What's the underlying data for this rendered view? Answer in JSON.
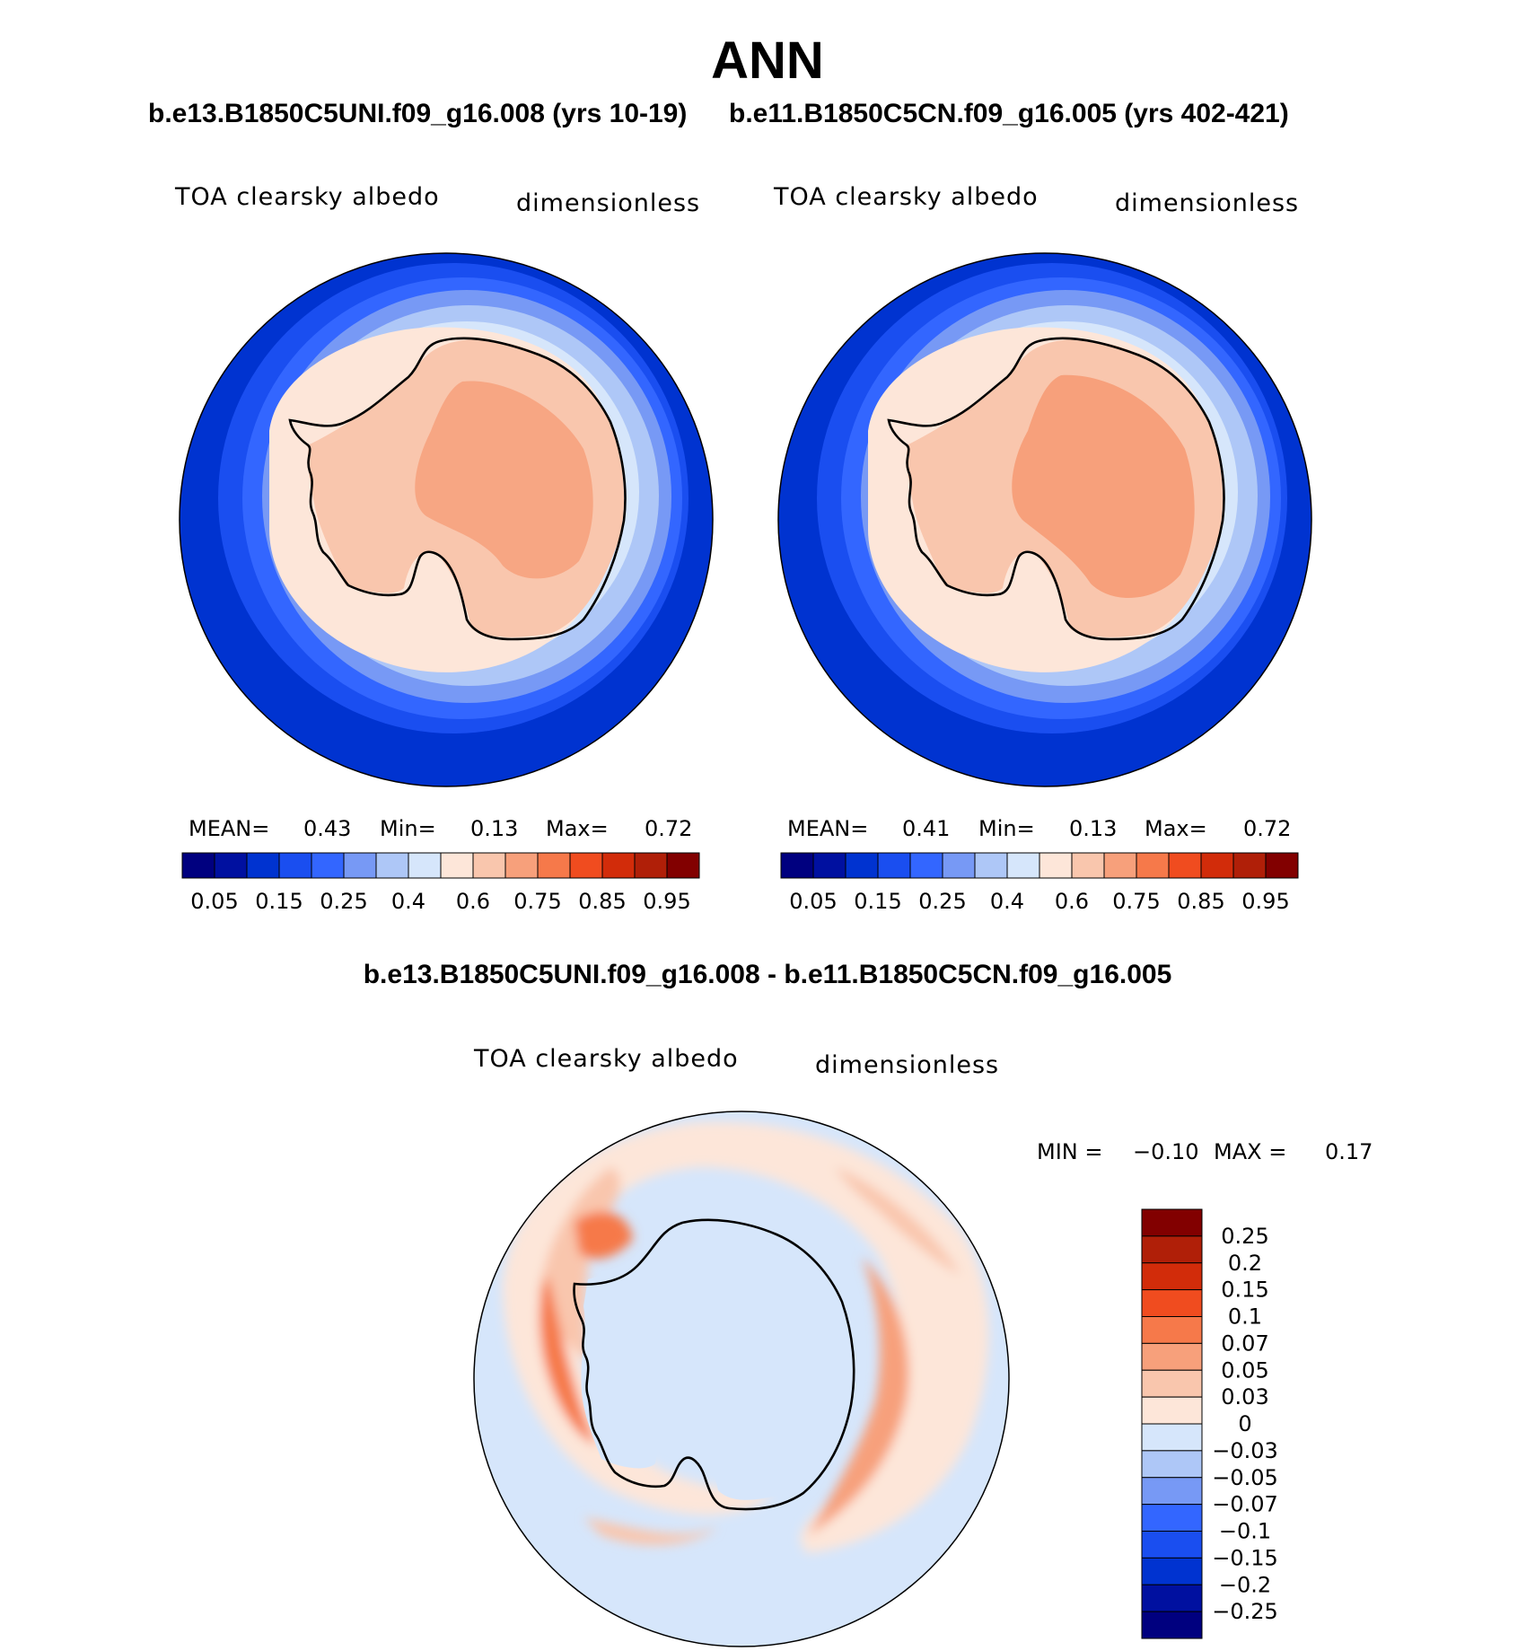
{
  "title": "ANN",
  "panels": [
    {
      "case_title": "b.e13.B1850C5UNI.f09_g16.008 (yrs 10-19)",
      "variable_label": "TOA clearsky albedo",
      "units_label": "dimensionless",
      "stats": {
        "mean_label": "MEAN=",
        "mean": "0.43",
        "min_label": "Min=",
        "min": "0.13",
        "max_label": "Max=",
        "max": "0.72"
      }
    },
    {
      "case_title": "b.e11.B1850C5CN.f09_g16.005 (yrs 402-421)",
      "variable_label": "TOA clearsky albedo",
      "units_label": "dimensionless",
      "stats": {
        "mean_label": "MEAN=",
        "mean": "0.41",
        "min_label": "Min=",
        "min": "0.13",
        "max_label": "Max=",
        "max": "0.72"
      }
    }
  ],
  "diff_panel": {
    "case_title": "b.e13.B1850C5UNI.f09_g16.008 - b.e11.B1850C5CN.f09_g16.005",
    "variable_label": "TOA clearsky albedo",
    "units_label": "dimensionless",
    "stats": {
      "min_label": "MIN =",
      "min": "−0.10",
      "max_label": "MAX =",
      "max": "0.17"
    }
  },
  "chart_data": [
    {
      "type": "heatmap",
      "projection": "south-polar-stereographic",
      "title": "b.e13.B1850C5UNI.f09_g16.008 (yrs 10-19)",
      "field": "TOA clearsky albedo",
      "units": "dimensionless",
      "mean": 0.43,
      "min": 0.13,
      "max": 0.72,
      "colorbar_levels": [
        0.05,
        0.1,
        0.15,
        0.2,
        0.25,
        0.3,
        0.4,
        0.5,
        0.6,
        0.7,
        0.75,
        0.8,
        0.85,
        0.9,
        0.95
      ],
      "colorbar_tick_labels": [
        "0.05",
        "0.15",
        "0.25",
        "0.4",
        "0.6",
        "0.75",
        "0.85",
        "0.95"
      ],
      "colors": [
        "#00007f",
        "#0010a0",
        "#0033d0",
        "#1a4ef0",
        "#3366ff",
        "#7799f5",
        "#aec7f7",
        "#d6e6fb",
        "#fde6d9",
        "#f9c6ad",
        "#f7a07b",
        "#f6794a",
        "#f04c1f",
        "#d22c0a",
        "#b01f08",
        "#820000"
      ]
    },
    {
      "type": "heatmap",
      "projection": "south-polar-stereographic",
      "title": "b.e11.B1850C5CN.f09_g16.005 (yrs 402-421)",
      "field": "TOA clearsky albedo",
      "units": "dimensionless",
      "mean": 0.41,
      "min": 0.13,
      "max": 0.72,
      "colorbar_levels": [
        0.05,
        0.1,
        0.15,
        0.2,
        0.25,
        0.3,
        0.4,
        0.5,
        0.6,
        0.7,
        0.75,
        0.8,
        0.85,
        0.9,
        0.95
      ],
      "colorbar_tick_labels": [
        "0.05",
        "0.15",
        "0.25",
        "0.4",
        "0.6",
        "0.75",
        "0.85",
        "0.95"
      ],
      "colors": [
        "#00007f",
        "#0010a0",
        "#0033d0",
        "#1a4ef0",
        "#3366ff",
        "#7799f5",
        "#aec7f7",
        "#d6e6fb",
        "#fde6d9",
        "#f9c6ad",
        "#f7a07b",
        "#f6794a",
        "#f04c1f",
        "#d22c0a",
        "#b01f08",
        "#820000"
      ]
    },
    {
      "type": "heatmap",
      "projection": "south-polar-stereographic",
      "title": "b.e13.B1850C5UNI.f09_g16.008 - b.e11.B1850C5CN.f09_g16.005",
      "field": "TOA clearsky albedo",
      "units": "dimensionless",
      "min": -0.1,
      "max": 0.17,
      "colorbar_levels": [
        0.25,
        0.2,
        0.15,
        0.1,
        0.07,
        0.05,
        0.03,
        0,
        -0.03,
        -0.05,
        -0.07,
        -0.1,
        -0.15,
        -0.2,
        -0.25
      ],
      "colorbar_tick_labels": [
        "0.25",
        "0.2",
        "0.15",
        "0.1",
        "0.07",
        "0.05",
        "0.03",
        "0",
        "−0.03",
        "−0.05",
        "−0.07",
        "−0.1",
        "−0.15",
        "−0.2",
        "−0.25"
      ],
      "colors": [
        "#820000",
        "#b01f08",
        "#d22c0a",
        "#f04c1f",
        "#f6794a",
        "#f7a07b",
        "#f9c6ad",
        "#fde6d9",
        "#d6e6fb",
        "#aec7f7",
        "#7799f5",
        "#3366ff",
        "#1a4ef0",
        "#0033d0",
        "#0010a0",
        "#00007f"
      ]
    }
  ]
}
